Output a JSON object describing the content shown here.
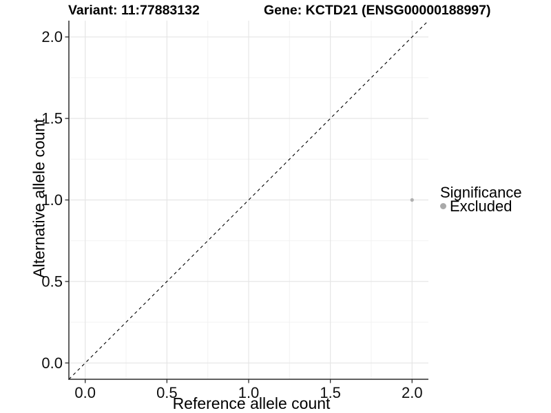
{
  "titles": {
    "variant": "Variant: 11:77883132",
    "gene": "Gene: KCTD21 (ENSG00000188997)"
  },
  "colors": {
    "background": "#ffffff",
    "grid_major": "#e5e5e5",
    "grid_minor": "#f2f2f2",
    "axis_line": "#2b2b2b",
    "tick_text": "#0d0d0d",
    "reference_line": "#000000",
    "point": "#b0b0b0",
    "legend_key": "#a9a9a9"
  },
  "chart_data": {
    "type": "scatter",
    "title_left": "Variant: 11:77883132",
    "title_right": "Gene: KCTD21 (ENSG00000188997)",
    "xlabel": "Reference allele count",
    "ylabel": "Alternative allele count",
    "xlim": [
      -0.1,
      2.1
    ],
    "ylim": [
      -0.1,
      2.1
    ],
    "x_ticks": {
      "values": [
        0.0,
        0.5,
        1.0,
        1.5,
        2.0
      ],
      "labels": [
        "0.0",
        "0.5",
        "1.0",
        "1.5",
        "2.0"
      ]
    },
    "y_ticks": {
      "values": [
        0.0,
        0.5,
        1.0,
        1.5,
        2.0
      ],
      "labels": [
        "0.0",
        "0.5",
        "1.0",
        "1.5",
        "2.0"
      ]
    },
    "x_minor_ticks": [
      0.25,
      0.75,
      1.25,
      1.75
    ],
    "y_minor_ticks": [
      0.25,
      0.75,
      1.25,
      1.75
    ],
    "grid": true,
    "reference_line": {
      "kind": "identity",
      "from": [
        -0.1,
        -0.1
      ],
      "to": [
        2.1,
        2.1
      ],
      "style": "dashed",
      "color": "#000000"
    },
    "series": [
      {
        "name": "Excluded",
        "color": "#b0b0b0",
        "points": [
          {
            "x": 2.0,
            "y": 1.0
          }
        ]
      }
    ],
    "legend": {
      "title": "Significance",
      "position": "right",
      "entries": [
        {
          "label": "Excluded",
          "color": "#a9a9a9"
        }
      ]
    }
  }
}
